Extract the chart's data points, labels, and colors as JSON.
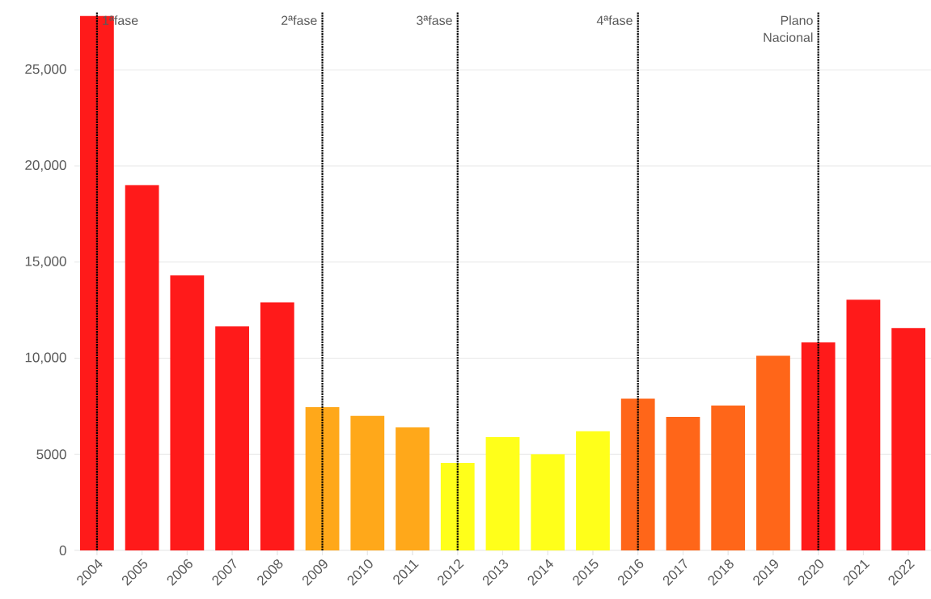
{
  "chart_data": {
    "type": "bar",
    "categories": [
      "2004",
      "2005",
      "2006",
      "2007",
      "2008",
      "2009",
      "2010",
      "2011",
      "2012",
      "2013",
      "2014",
      "2015",
      "2016",
      "2017",
      "2018",
      "2019",
      "2020",
      "2021",
      "2022"
    ],
    "values": [
      27800,
      19000,
      14300,
      11650,
      12900,
      7450,
      7000,
      6400,
      4550,
      5890,
      5000,
      6200,
      7900,
      6950,
      7540,
      10130,
      10820,
      13040,
      11570
    ],
    "colors": [
      "#ff1a1a",
      "#ff1a1a",
      "#ff1a1a",
      "#ff1a1a",
      "#ff1a1a",
      "#ffa81a",
      "#ffa81a",
      "#ffa81a",
      "#ffff1a",
      "#ffff1a",
      "#ffff1a",
      "#ffff1a",
      "#ff6619",
      "#ff6619",
      "#ff6619",
      "#ff6619",
      "#ff1a1a",
      "#ff1a1a",
      "#ff1a1a"
    ],
    "ylim": [
      0,
      28000
    ],
    "yticks": [
      0,
      5000,
      {
        "value": 10000,
        "label": "10,000"
      },
      {
        "value": 15000,
        "label": "15,000"
      },
      {
        "value": 20000,
        "label": "20,000"
      },
      {
        "value": 25000,
        "label": "25,000"
      }
    ],
    "grid": "y",
    "ref_lines": [
      {
        "axis": "x",
        "value": "2004",
        "label": "1ªfase",
        "color": "#000000",
        "line_style": "dotted"
      },
      {
        "axis": "x",
        "value": "2009",
        "label": "2ªfase",
        "color": "#000000",
        "line_style": "dotted"
      },
      {
        "axis": "x",
        "value": "2012",
        "label": "3ªfase",
        "color": "#000000",
        "line_style": "dotted"
      },
      {
        "axis": "x",
        "value": "2016",
        "label": "4ªfase",
        "color": "#000000",
        "line_style": "dotted"
      },
      {
        "axis": "x",
        "value": "2020",
        "label": "Plano Nacional",
        "color": "#000000",
        "line_style": "dotted"
      }
    ]
  }
}
